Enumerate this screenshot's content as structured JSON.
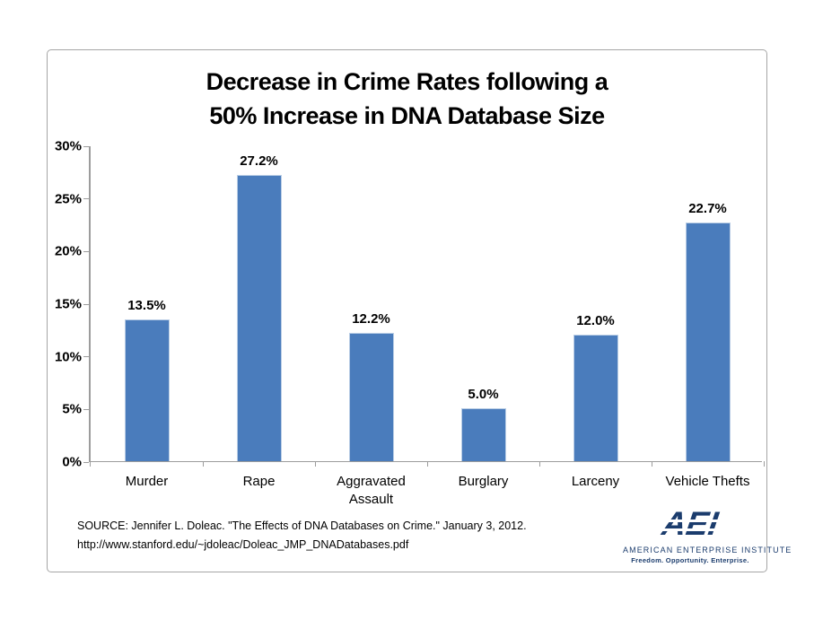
{
  "chart": {
    "title_line1": "Decrease in Crime Rates following a",
    "title_line2": "50% Increase in DNA Database Size",
    "source_line1": "SOURCE: Jennifer L. Doleac. \"The Effects of DNA Databases on Crime.\" January 3, 2012.",
    "source_line2": "http://www.stanford.edu/~jdoleac/Doleac_JMP_DNADatabases.pdf",
    "colors": {
      "bar": "#4a7cbc",
      "bar_edge": "#b9cde5",
      "axis": "#9c9c9c",
      "frame_border": "#a6a6a6",
      "text": "#000000",
      "aei_navy": "#1b3c6d"
    }
  },
  "chart_data": {
    "type": "bar",
    "title": "Decrease in Crime Rates following a 50% Increase in DNA Database Size",
    "categories": [
      "Murder",
      "Rape",
      "Aggravated Assault",
      "Burglary",
      "Larceny",
      "Vehicle Thefts"
    ],
    "values": [
      13.5,
      27.2,
      12.2,
      5.0,
      12.0,
      22.7
    ],
    "data_labels": [
      "13.5%",
      "27.2%",
      "12.2%",
      "5.0%",
      "12.0%",
      "22.7%"
    ],
    "xlabel": "",
    "ylabel": "",
    "ylim": [
      0,
      30
    ],
    "ytick_step": 5,
    "ytick_labels": [
      "0%",
      "5%",
      "10%",
      "15%",
      "20%",
      "25%",
      "30%"
    ],
    "grid": false,
    "legend": null
  },
  "logo": {
    "mark": "AEI",
    "org": "AMERICAN ENTERPRISE INSTITUTE",
    "tagline": "Freedom. Opportunity. Enterprise."
  }
}
